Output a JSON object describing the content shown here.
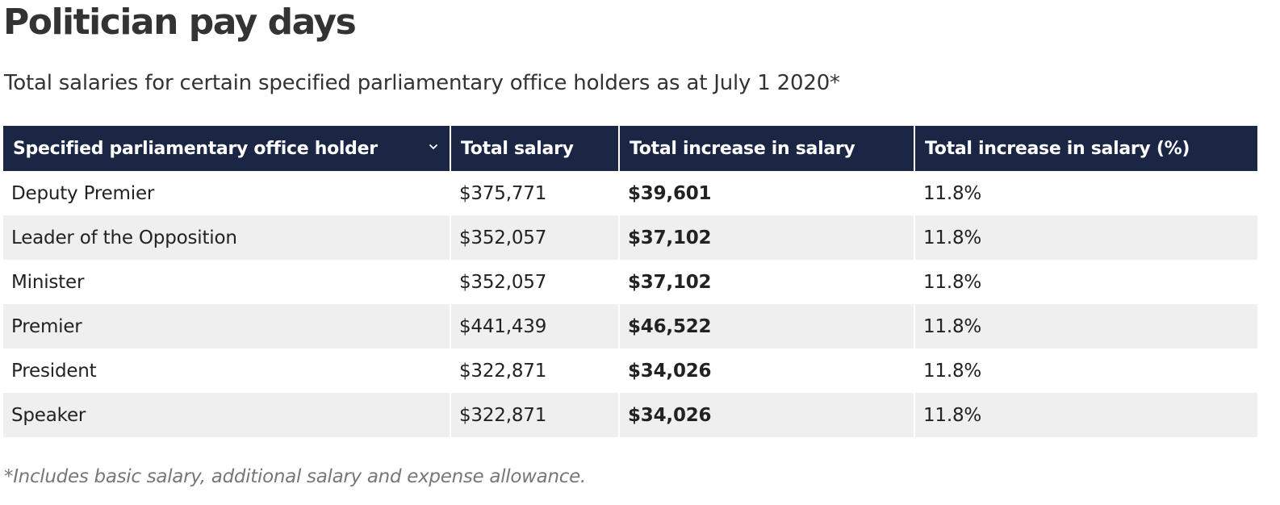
{
  "title": "Politician pay days",
  "subtitle": "Total salaries for certain specified parliamentary office holders as at July 1 2020*",
  "table": {
    "columns": [
      "Specified parliamentary office holder",
      "Total salary",
      "Total increase in salary",
      "Total increase in salary (%)"
    ],
    "sort_icon": "chevron-down-icon",
    "header_color": "#1b2544",
    "stripe_color": "#efefef",
    "rows": [
      {
        "holder": "Deputy Premier",
        "salary": "$375,771",
        "increase": "$39,601",
        "increase_pct": "11.8%"
      },
      {
        "holder": "Leader of the Opposition",
        "salary": "$352,057",
        "increase": "$37,102",
        "increase_pct": "11.8%"
      },
      {
        "holder": "Minister",
        "salary": "$352,057",
        "increase": "$37,102",
        "increase_pct": "11.8%"
      },
      {
        "holder": "Premier",
        "salary": "$441,439",
        "increase": "$46,522",
        "increase_pct": "11.8%"
      },
      {
        "holder": "President",
        "salary": "$322,871",
        "increase": "$34,026",
        "increase_pct": "11.8%"
      },
      {
        "holder": "Speaker",
        "salary": "$322,871",
        "increase": "$34,026",
        "increase_pct": "11.8%"
      }
    ]
  },
  "footnote": "*Includes basic salary, additional salary and expense allowance."
}
